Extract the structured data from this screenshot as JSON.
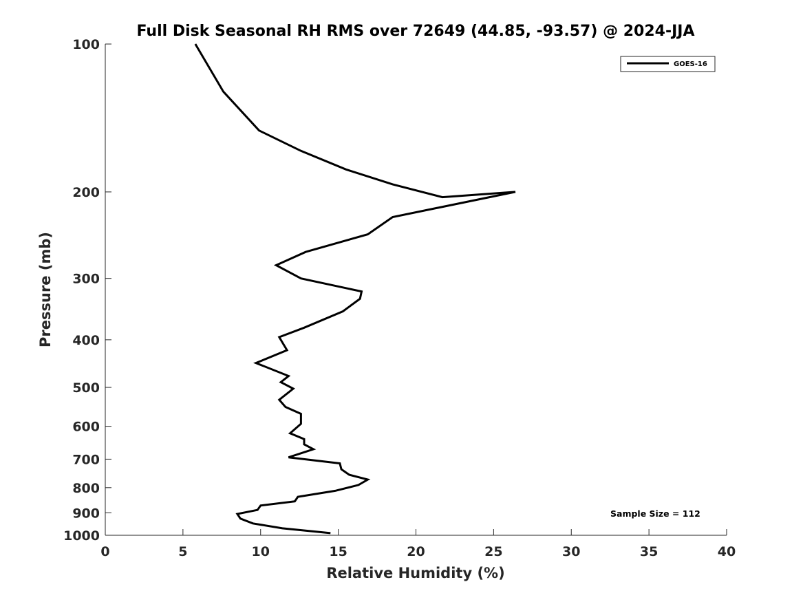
{
  "chart_data": {
    "type": "line",
    "title": "Full Disk Seasonal RH RMS over 72649 (44.85, -93.57) @ 2024-JJA",
    "xlabel": "Relative Humidity (%)",
    "ylabel": "Pressure (mb)",
    "xlim": [
      0,
      40
    ],
    "ylim": [
      100,
      1000
    ],
    "yscale": "log",
    "y_reversed": true,
    "xticks": [
      "0",
      "5",
      "10",
      "15",
      "20",
      "25",
      "30",
      "35",
      "40"
    ],
    "yticks": [
      "100",
      "200",
      "300",
      "400",
      "500",
      "600",
      "700",
      "800",
      "900",
      "1000"
    ],
    "grid": false,
    "legend_position": "top-right",
    "annotation": "Sample Size = 112",
    "series": [
      {
        "name": "GOES-16",
        "color": "#000000",
        "points": [
          [
            5.8,
            100
          ],
          [
            7.6,
            125
          ],
          [
            9.9,
            150
          ],
          [
            12.6,
            165
          ],
          [
            15.5,
            180
          ],
          [
            18.5,
            193
          ],
          [
            21.7,
            205
          ],
          [
            26.4,
            200
          ],
          [
            18.5,
            225
          ],
          [
            16.9,
            244
          ],
          [
            12.9,
            265
          ],
          [
            11.0,
            282
          ],
          [
            12.6,
            300
          ],
          [
            16.5,
            319
          ],
          [
            16.4,
            330
          ],
          [
            15.3,
            350
          ],
          [
            12.8,
            378
          ],
          [
            11.2,
            395
          ],
          [
            11.7,
            420
          ],
          [
            9.7,
            446
          ],
          [
            11.8,
            474
          ],
          [
            11.3,
            488
          ],
          [
            12.1,
            503
          ],
          [
            11.2,
            530
          ],
          [
            11.6,
            548
          ],
          [
            12.6,
            566
          ],
          [
            12.6,
            593
          ],
          [
            11.9,
            620
          ],
          [
            12.8,
            637
          ],
          [
            12.8,
            653
          ],
          [
            13.4,
            668
          ],
          [
            11.8,
            694
          ],
          [
            15.1,
            714
          ],
          [
            15.2,
            734
          ],
          [
            15.7,
            753
          ],
          [
            16.9,
            770
          ],
          [
            16.3,
            790
          ],
          [
            14.8,
            812
          ],
          [
            12.4,
            835
          ],
          [
            12.2,
            853
          ],
          [
            10.0,
            870
          ],
          [
            9.8,
            888
          ],
          [
            8.5,
            905
          ],
          [
            8.7,
            925
          ],
          [
            9.5,
            946
          ],
          [
            11.4,
            968
          ],
          [
            14.5,
            990
          ]
        ]
      }
    ]
  }
}
